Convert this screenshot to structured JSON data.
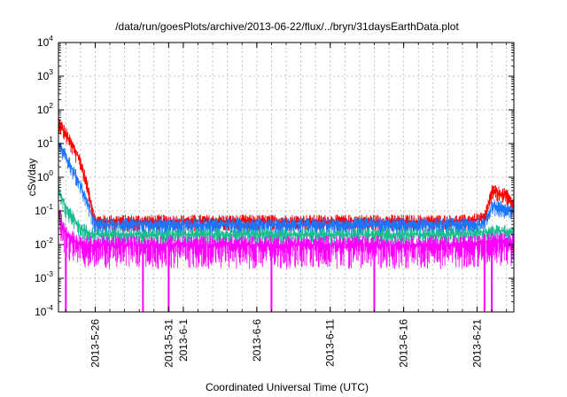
{
  "chart_data": {
    "type": "line",
    "title": "/data/run/goesPlots/archive/2013-06-22/flux/../bryn/31daysEarthData.plot",
    "xlabel": "Coordinated Universal Time (UTC)",
    "ylabel": "cSv/day",
    "y_scale": "log",
    "ylim": [
      0.0001,
      10000
    ],
    "y_ticks": [
      {
        "base": "10",
        "exp": "-4",
        "value": 0.0001
      },
      {
        "base": "10",
        "exp": "-3",
        "value": 0.001
      },
      {
        "base": "10",
        "exp": "-2",
        "value": 0.01
      },
      {
        "base": "10",
        "exp": "-1",
        "value": 0.1
      },
      {
        "base": "10",
        "exp": "0",
        "value": 1
      },
      {
        "base": "10",
        "exp": "1",
        "value": 10
      },
      {
        "base": "10",
        "exp": "2",
        "value": 100
      },
      {
        "base": "10",
        "exp": "3",
        "value": 1000
      },
      {
        "base": "10",
        "exp": "4",
        "value": 10000
      }
    ],
    "xlim": [
      "2013-05-23 12:00",
      "2013-06-23 12:00"
    ],
    "x_tick_labels": [
      "2013-5-26",
      "2013-5-31",
      "2013-6-1",
      "2013-6-6",
      "2013-6-11",
      "2013-6-16",
      "2013-6-21"
    ],
    "x_tick_dates": [
      "2013-05-26",
      "2013-05-31",
      "2013-06-01",
      "2013-06-06",
      "2013-06-11",
      "2013-06-16",
      "2013-06-21"
    ],
    "grid": true,
    "colors": {
      "red": "#ff0000",
      "blue": "#1a75ff",
      "green": "#1dbb91",
      "magenta": "#ff00ff",
      "axis": "#000000",
      "grid": "#b4b4b4"
    },
    "series": [
      {
        "color": "#ff0000",
        "x": [
          "2013-05-23",
          "2013-05-24",
          "2013-05-25",
          "2013-05-25 12:00",
          "2013-05-26",
          "2013-05-27",
          "2013-06-01",
          "2013-06-10",
          "2013-06-20",
          "2013-06-21 12:00",
          "2013-06-22",
          "2013-06-23",
          "2013-06-23 12:00"
        ],
        "y": [
          100,
          20,
          3,
          0.5,
          0.05,
          0.05,
          0.05,
          0.05,
          0.05,
          0.06,
          0.4,
          0.3,
          0.15
        ]
      },
      {
        "color": "#1a75ff",
        "x": [
          "2013-05-23",
          "2013-05-24",
          "2013-05-25",
          "2013-05-25 12:00",
          "2013-05-26",
          "2013-05-27",
          "2013-06-01",
          "2013-06-10",
          "2013-06-20",
          "2013-06-21 12:00",
          "2013-06-22",
          "2013-06-23",
          "2013-06-23 12:00"
        ],
        "y": [
          30,
          4,
          0.6,
          0.15,
          0.04,
          0.04,
          0.04,
          0.04,
          0.04,
          0.04,
          0.15,
          0.12,
          0.1
        ]
      },
      {
        "color": "#1dbb91",
        "x": [
          "2013-05-23",
          "2013-05-24",
          "2013-05-25",
          "2013-05-26",
          "2013-05-27",
          "2013-06-01",
          "2013-06-10",
          "2013-06-20",
          "2013-06-22",
          "2013-06-23 12:00"
        ],
        "y": [
          1.5,
          0.12,
          0.03,
          0.02,
          0.02,
          0.02,
          0.02,
          0.02,
          0.025,
          0.025
        ]
      },
      {
        "color": "#ff00ff",
        "x": [
          "2013-05-23",
          "2013-05-24",
          "2013-05-25",
          "2013-05-26",
          "2013-06-01",
          "2013-06-10",
          "2013-06-20",
          "2013-06-22",
          "2013-06-23 12:00"
        ],
        "y": [
          0.5,
          0.02,
          0.01,
          0.01,
          0.01,
          0.01,
          0.01,
          0.012,
          0.012
        ],
        "dropouts": [
          "2013-05-24",
          "2013-05-29 06:00",
          "2013-05-31",
          "2013-06-07",
          "2013-06-14",
          "2013-06-21 12:00",
          "2013-06-22"
        ]
      }
    ]
  }
}
